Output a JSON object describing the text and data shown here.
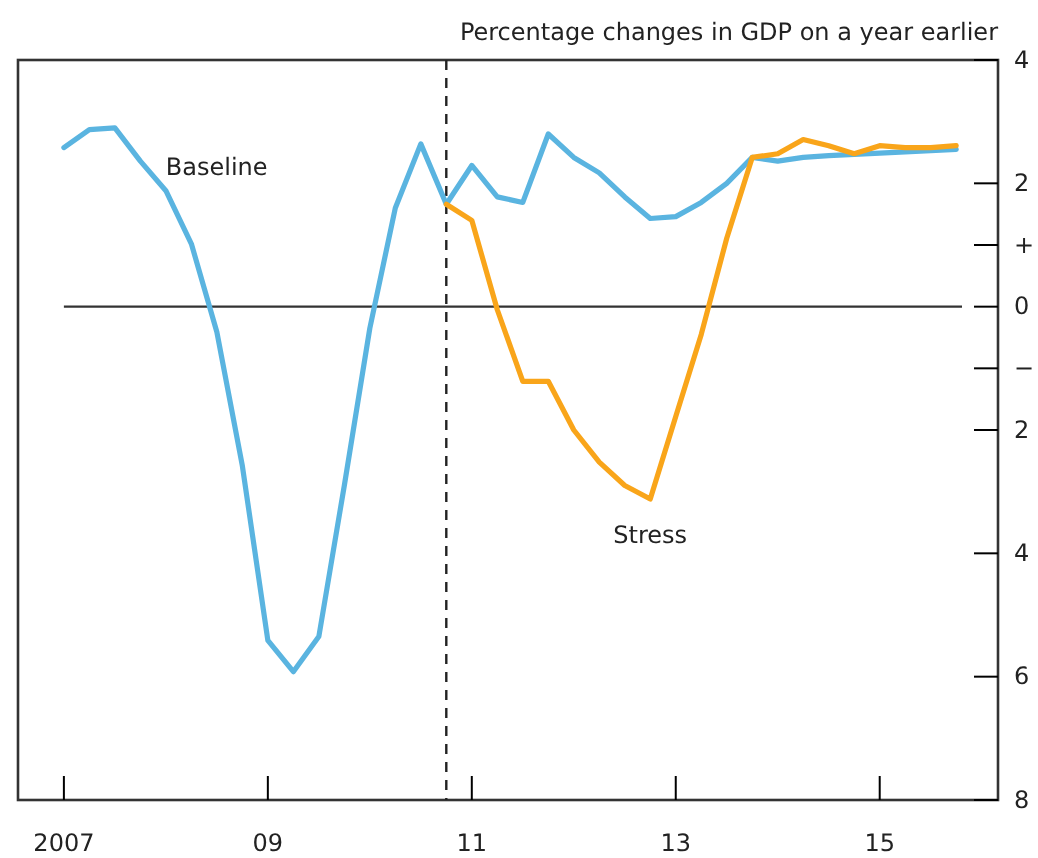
{
  "chart_data": {
    "type": "line",
    "title": "Percentage changes in GDP on a year earlier",
    "xlim": [
      2006.55,
      2016.16
    ],
    "xticks": [
      {
        "value": 2007,
        "label": "2007"
      },
      {
        "value": 2009,
        "label": "09"
      },
      {
        "value": 2011,
        "label": "11"
      },
      {
        "value": 2013,
        "label": "13"
      },
      {
        "value": 2015,
        "label": "15"
      }
    ],
    "ylim": [
      -8,
      4
    ],
    "yticks": [
      {
        "value": 4,
        "label": "4"
      },
      {
        "value": 2,
        "label": "2"
      },
      {
        "value": 1,
        "label": "+"
      },
      {
        "value": 0,
        "label": "0"
      },
      {
        "value": -1,
        "label": "−"
      },
      {
        "value": -2,
        "label": "2"
      },
      {
        "value": -4,
        "label": "4"
      },
      {
        "value": -6,
        "label": "6"
      },
      {
        "value": -8,
        "label": "8"
      }
    ],
    "grid": false,
    "legend": false,
    "line_style": "solid",
    "marker": "none",
    "ref_lines": [
      {
        "axis": "x",
        "value": 2010.75,
        "line_style": "dashed",
        "color": "#222222"
      },
      {
        "axis": "y",
        "value": 0,
        "line_style": "solid",
        "color": "#333333"
      }
    ],
    "series": [
      {
        "name": "Baseline",
        "color": "#5ab4e0",
        "x": [
          2007,
          2007.25,
          2007.5,
          2007.75,
          2008,
          2008.25,
          2008.5,
          2008.75,
          2009,
          2009.25,
          2009.5,
          2009.75,
          2010,
          2010.25,
          2010.5,
          2010.75,
          2011,
          2011.25,
          2011.5,
          2011.75,
          2012,
          2012.25,
          2012.5,
          2012.75,
          2013,
          2013.25,
          2013.5,
          2013.75,
          2014,
          2014.25,
          2014.5,
          2014.75,
          2015,
          2015.25,
          2015.5,
          2015.75
        ],
        "values": [
          2.58,
          2.87,
          2.9,
          2.36,
          1.88,
          1.02,
          -0.41,
          -2.58,
          -5.41,
          -5.92,
          -5.35,
          -2.9,
          -0.35,
          1.6,
          2.64,
          1.66,
          2.29,
          1.78,
          1.69,
          2.8,
          2.42,
          2.17,
          1.78,
          1.43,
          1.46,
          1.69,
          2.0,
          2.42,
          2.36,
          2.42,
          2.45,
          2.47,
          2.49,
          2.51,
          2.53,
          2.55
        ]
      },
      {
        "name": "Stress",
        "color": "#f9a51a",
        "x": [
          2010.75,
          2011,
          2011.25,
          2011.5,
          2011.75,
          2012,
          2012.25,
          2012.5,
          2012.75,
          2013,
          2013.25,
          2013.5,
          2013.75,
          2014,
          2014.25,
          2014.5,
          2014.75,
          2015,
          2015.25,
          2015.5,
          2015.75
        ],
        "values": [
          1.66,
          1.4,
          -0.05,
          -1.21,
          -1.21,
          -2.0,
          -2.52,
          -2.9,
          -3.12,
          -1.78,
          -0.45,
          1.11,
          2.42,
          2.48,
          2.71,
          2.61,
          2.48,
          2.61,
          2.58,
          2.58,
          2.61
        ]
      }
    ]
  }
}
